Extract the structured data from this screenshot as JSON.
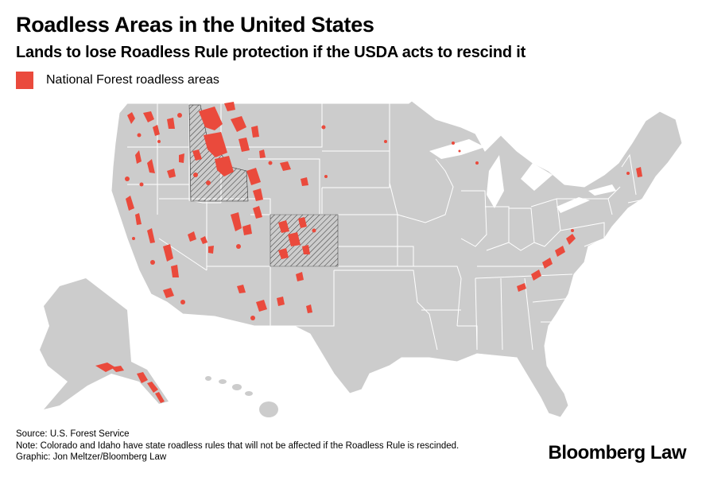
{
  "title": "Roadless Areas in the United States",
  "subtitle": "Lands to lose Roadless Rule protection if the USDA acts to rescind it",
  "legend": {
    "label": "National Forest roadless areas",
    "color": "#ea4a3c"
  },
  "colors": {
    "land": "#cccccc",
    "borders": "#ffffff",
    "roadless": "#ea4a3c",
    "hatch": "#333333"
  },
  "footer": {
    "source": "Source: U.S. Forest Service",
    "note": "Note: Colorado and Idaho have state roadless rules that will not be affected if the Roadless Rule is rescinded.",
    "credit": "Graphic: Jon Meltzer/Bloomberg Law"
  },
  "brand": "Bloomberg Law",
  "map": {
    "hatched_states": [
      "Idaho",
      "Colorado"
    ]
  }
}
